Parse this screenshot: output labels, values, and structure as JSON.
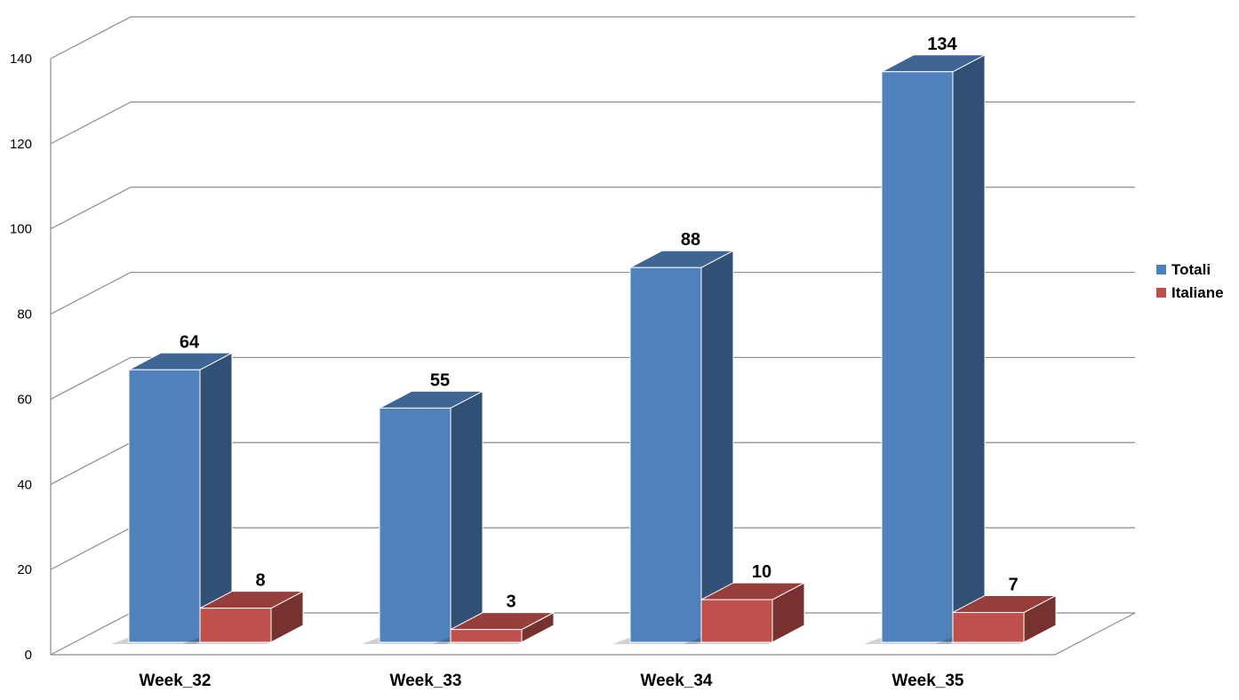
{
  "chart_data": {
    "type": "bar",
    "categories": [
      "Week_32",
      "Week_33",
      "Week_34",
      "Week_35"
    ],
    "series": [
      {
        "name": "Totali",
        "values": [
          64,
          55,
          88,
          134
        ],
        "color": "#4f81bd"
      },
      {
        "name": "Italiane",
        "values": [
          8,
          3,
          10,
          7
        ],
        "color": "#c0504d"
      }
    ],
    "ylim": [
      0,
      140
    ],
    "yticks": [
      0,
      20,
      40,
      60,
      80,
      100,
      120,
      140
    ],
    "grid": true,
    "legend_position": "right",
    "three_d": true
  }
}
